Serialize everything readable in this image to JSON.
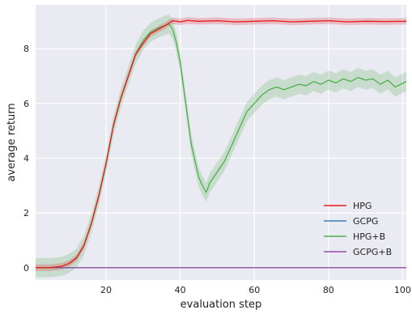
{
  "chart_data": {
    "type": "line",
    "title": "",
    "xlabel": "evaluation step",
    "ylabel": "average return",
    "xlim": [
      1,
      101
    ],
    "ylim": [
      -0.45,
      9.6
    ],
    "xticks": [
      20,
      40,
      60,
      80,
      100
    ],
    "yticks": [
      0,
      2,
      4,
      6,
      8
    ],
    "grid": true,
    "legend_position": "bottom-right",
    "background": "#eaeaf2",
    "series": [
      {
        "name": "HPG",
        "color": "#e41a1c",
        "x": [
          1,
          5,
          8,
          10,
          12,
          14,
          16,
          18,
          20,
          22,
          24,
          26,
          28,
          30,
          32,
          34,
          36,
          38,
          40,
          42,
          45,
          50,
          55,
          60,
          65,
          70,
          75,
          80,
          85,
          90,
          95,
          101
        ],
        "y": [
          0,
          0,
          0.05,
          0.15,
          0.35,
          0.8,
          1.6,
          2.6,
          3.8,
          5.2,
          6.2,
          7.0,
          7.8,
          8.2,
          8.55,
          8.7,
          8.85,
          9.02,
          8.98,
          9.03,
          9.0,
          9.02,
          8.98,
          9.0,
          9.02,
          8.98,
          9.0,
          9.02,
          8.98,
          9.0,
          8.99,
          9.0
        ],
        "band": 0.12
      },
      {
        "name": "GCPG",
        "color": "#377eb8",
        "x": [
          1,
          101
        ],
        "y": [
          0,
          0
        ],
        "band": 0
      },
      {
        "name": "HPG+B",
        "color": "#4daf4a",
        "x": [
          1,
          5,
          8,
          10,
          12,
          14,
          16,
          18,
          20,
          22,
          24,
          26,
          28,
          30,
          32,
          34,
          36,
          37,
          38,
          39,
          40,
          41,
          42,
          43,
          44,
          45,
          46,
          47,
          48,
          50,
          52,
          54,
          56,
          58,
          60,
          62,
          64,
          66,
          68,
          70,
          72,
          74,
          76,
          78,
          80,
          82,
          84,
          86,
          88,
          90,
          92,
          94,
          96,
          98,
          101
        ],
        "y": [
          0,
          0,
          0.05,
          0.15,
          0.35,
          0.8,
          1.6,
          2.6,
          3.8,
          5.2,
          6.2,
          7.0,
          7.8,
          8.3,
          8.6,
          8.75,
          8.85,
          8.9,
          8.7,
          8.2,
          7.5,
          6.5,
          5.5,
          4.5,
          3.9,
          3.3,
          3.0,
          2.75,
          3.1,
          3.5,
          3.9,
          4.5,
          5.1,
          5.7,
          6.0,
          6.3,
          6.5,
          6.6,
          6.5,
          6.6,
          6.7,
          6.65,
          6.8,
          6.7,
          6.85,
          6.75,
          6.9,
          6.8,
          6.95,
          6.85,
          6.9,
          6.7,
          6.85,
          6.6,
          6.8
        ],
        "band": 0.35
      },
      {
        "name": "GCPG+B",
        "color": "#984ea3",
        "x": [
          1,
          101
        ],
        "y": [
          0,
          0
        ],
        "band": 0
      }
    ]
  }
}
